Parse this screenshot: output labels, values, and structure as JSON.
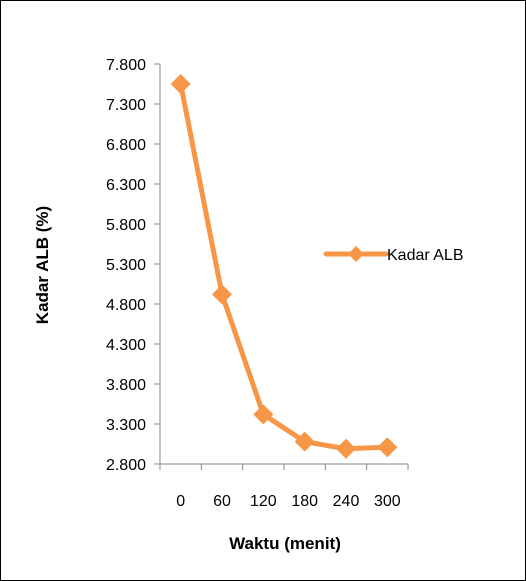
{
  "chart_data": {
    "type": "line",
    "title": "",
    "xlabel": "Waktu (menit)",
    "ylabel": "Kadar ALB (%)",
    "categories": [
      "0",
      "60",
      "120",
      "180",
      "240",
      "300"
    ],
    "yticks": [
      "2.800",
      "3.300",
      "3.800",
      "4.300",
      "4.800",
      "5.300",
      "5.800",
      "6.300",
      "6.800",
      "7.300",
      "7.800"
    ],
    "ylim": [
      2.8,
      7.8
    ],
    "grid": false,
    "legend_position": "right",
    "series": [
      {
        "name": "Kadar ALB",
        "color": "#F79646",
        "marker": "diamond",
        "values": [
          7.55,
          4.92,
          3.42,
          3.08,
          2.99,
          3.01
        ]
      }
    ]
  }
}
